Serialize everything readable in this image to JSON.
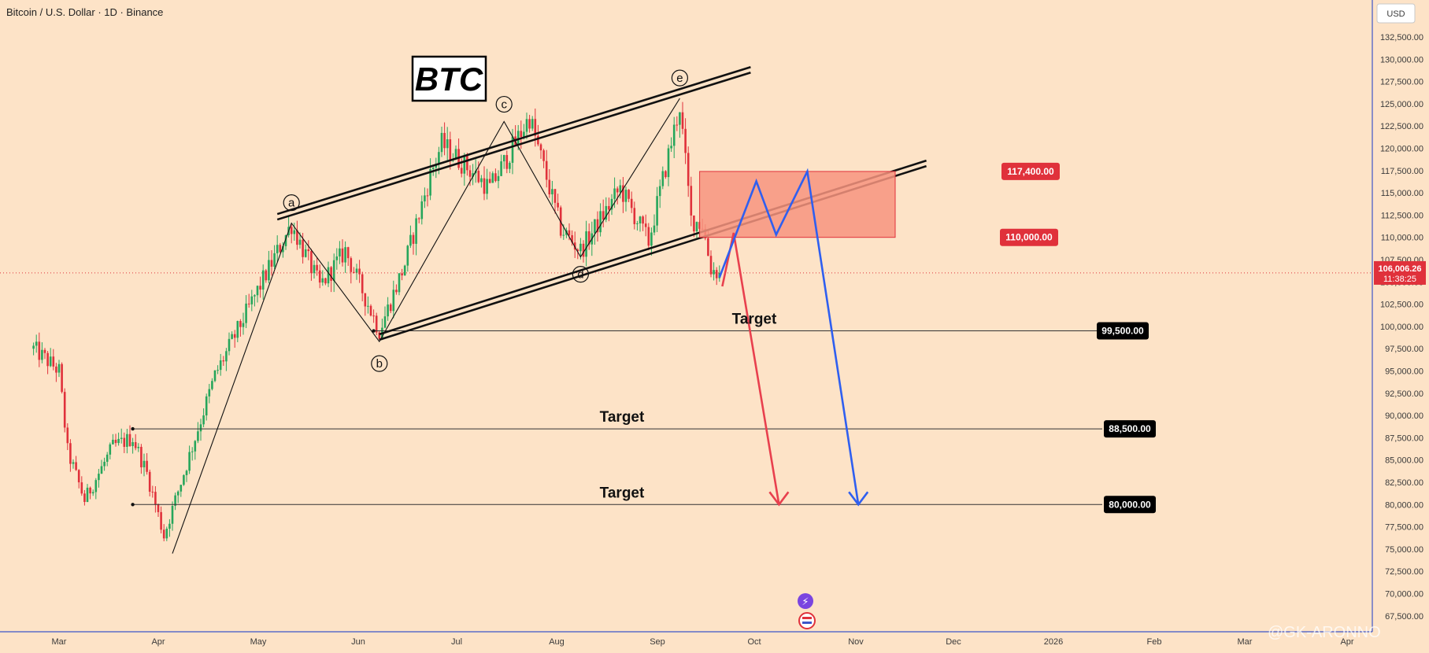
{
  "header": {
    "title": "Bitcoin / U.S. Dollar · 1D · Binance",
    "currency_button": "USD"
  },
  "price_tag": {
    "price": "106,006.26",
    "countdown": "11:38:25"
  },
  "watermark": "@GK-ARONNO",
  "annotation": {
    "label": "BTC"
  },
  "colors": {
    "background": "#fde3c7",
    "bull": "#26a65b",
    "bear": "#e0313b",
    "zone": "#f7947f",
    "red_path": "#e8404e",
    "blue_path": "#2f5ff0",
    "axis_line": "#3d56c9"
  },
  "chart_data": {
    "type": "candlestick",
    "title": "Bitcoin / U.S. Dollar · 1D · Binance",
    "y_axis": {
      "ylim": [
        66000,
        135000
      ],
      "ticks": [
        "132,500.00",
        "130,000.00",
        "127,500.00",
        "125,000.00",
        "122,500.00",
        "120,000.00",
        "117,500.00",
        "115,000.00",
        "112,500.00",
        "110,000.00",
        "107,500.00",
        "105,000.00",
        "102,500.00",
        "100,000.00",
        "97,500.00",
        "95,000.00",
        "92,500.00",
        "90,000.00",
        "87,500.00",
        "85,000.00",
        "82,500.00",
        "80,000.00",
        "77,500.00",
        "75,000.00",
        "72,500.00",
        "70,000.00",
        "67,500.00"
      ]
    },
    "x_axis": {
      "labels": [
        "Mar",
        "Apr",
        "May",
        "Jun",
        "Jul",
        "Aug",
        "Sep",
        "Oct",
        "Nov",
        "Dec",
        "2026",
        "Feb",
        "Mar",
        "Apr"
      ]
    },
    "last_price": 106006.26,
    "price_path": [
      [
        "2025-02-20",
        97500
      ],
      [
        "2025-03-01",
        95000
      ],
      [
        "2025-03-04",
        86000
      ],
      [
        "2025-03-10",
        80500
      ],
      [
        "2025-03-20",
        86500
      ],
      [
        "2025-03-27",
        87500
      ],
      [
        "2025-04-01",
        83500
      ],
      [
        "2025-04-07",
        76500
      ],
      [
        "2025-04-15",
        84500
      ],
      [
        "2025-04-25",
        94500
      ],
      [
        "2025-05-10",
        104000
      ],
      [
        "2025-05-22",
        111500
      ],
      [
        "2025-06-01",
        104500
      ],
      [
        "2025-06-10",
        108500
      ],
      [
        "2025-06-22",
        99500
      ],
      [
        "2025-07-01",
        107000
      ],
      [
        "2025-07-10",
        117000
      ],
      [
        "2025-07-14",
        120500
      ],
      [
        "2025-07-31",
        115500
      ],
      [
        "2025-08-14",
        123500
      ],
      [
        "2025-08-25",
        111000
      ],
      [
        "2025-09-01",
        108500
      ],
      [
        "2025-09-15",
        115500
      ],
      [
        "2025-09-25",
        109500
      ],
      [
        "2025-10-06",
        124800
      ],
      [
        "2025-10-10",
        112000
      ],
      [
        "2025-10-14",
        111500
      ],
      [
        "2025-10-17",
        106500
      ],
      [
        "2025-10-20",
        106006
      ]
    ],
    "channel": {
      "upper": [
        [
          "2025-05-17",
          112000
        ],
        [
          "2025-10-31",
          128500
        ]
      ],
      "lower": [
        [
          "2025-06-22",
          98500
        ],
        [
          "2026-01-01",
          118000
        ]
      ]
    },
    "waves": [
      {
        "label": "a",
        "date": "2025-05-22",
        "price": 111600
      },
      {
        "label": "b",
        "date": "2025-06-22",
        "price": 98300
      },
      {
        "label": "c",
        "date": "2025-08-05",
        "price": 123000
      },
      {
        "label": "d",
        "date": "2025-09-01",
        "price": 107800
      },
      {
        "label": "e",
        "date": "2025-10-06",
        "price": 125600
      }
    ],
    "zone": {
      "from": "2025-10-13",
      "to": "2025-12-21",
      "top": 117400,
      "bottom": 110000
    },
    "targets": [
      {
        "label": "Target",
        "price": 99500,
        "tag": "99,500.00",
        "from": "2025-06-20"
      },
      {
        "label": "Target",
        "price": 88500,
        "tag": "88,500.00",
        "from": "2025-03-27"
      },
      {
        "label": "Target",
        "price": 80000,
        "tag": "80,000.00",
        "from": "2025-03-27"
      }
    ],
    "zone_tags": [
      {
        "price": 117400,
        "tag": "117,400.00"
      },
      {
        "price": 110000,
        "tag": "110,000.00"
      }
    ],
    "projection_red": [
      [
        "2025-10-21",
        104500
      ],
      [
        "2025-10-25",
        110500
      ],
      [
        "2025-11-10",
        80000
      ]
    ],
    "projection_blue": [
      [
        "2025-10-20",
        105500
      ],
      [
        "2025-10-26",
        110500
      ],
      [
        "2025-11-02",
        116300
      ],
      [
        "2025-11-09",
        110300
      ],
      [
        "2025-11-20",
        117400
      ],
      [
        "2025-12-08",
        80000
      ]
    ]
  }
}
